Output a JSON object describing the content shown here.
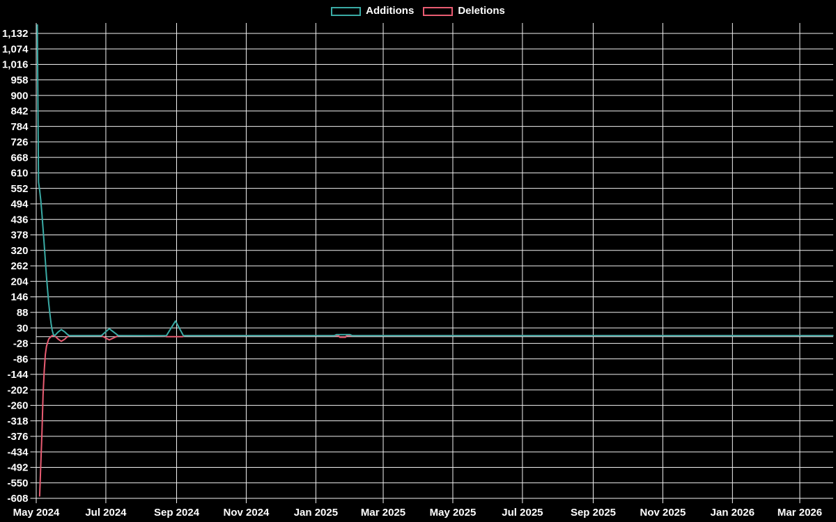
{
  "legend": {
    "items": [
      {
        "label": "Additions",
        "color": "#3aaba5"
      },
      {
        "label": "Deletions",
        "color": "#e95c72"
      }
    ]
  },
  "colors": {
    "background": "#000000",
    "grid": "#f2f2f2",
    "zero_axis": "#f2f2f2",
    "label_text": "#ffffff",
    "additions": "#3aaba5",
    "deletions": "#e95c72"
  },
  "chart_data": {
    "type": "line",
    "title": "",
    "legend_position": "top-center",
    "grid": true,
    "x_axis": {
      "unit": "days since 2024-05-01",
      "range_days": [
        0,
        698
      ],
      "ticks": [
        {
          "day": 0,
          "label": "May 2024"
        },
        {
          "day": 61,
          "label": "Jul 2024"
        },
        {
          "day": 123,
          "label": "Sep 2024"
        },
        {
          "day": 184,
          "label": "Nov 2024"
        },
        {
          "day": 245,
          "label": "Jan 2025"
        },
        {
          "day": 304,
          "label": "Mar 2025"
        },
        {
          "day": 365,
          "label": "May 2025"
        },
        {
          "day": 426,
          "label": "Jul 2025"
        },
        {
          "day": 488,
          "label": "Sep 2025"
        },
        {
          "day": 549,
          "label": "Nov 2025"
        },
        {
          "day": 610,
          "label": "Jan 2026"
        },
        {
          "day": 669,
          "label": "Mar 2026"
        }
      ]
    },
    "y_axis": {
      "min": -608,
      "max": 1132,
      "tick_step": 58,
      "tick_labels": [
        "1,132",
        "1,074",
        "1,016",
        "958",
        "900",
        "842",
        "784",
        "726",
        "668",
        "610",
        "552",
        "494",
        "436",
        "378",
        "320",
        "262",
        "204",
        "146",
        "88",
        "30",
        "-28",
        "-86",
        "-144",
        "-202",
        "-260",
        "-318",
        "-376",
        "-434",
        "-492",
        "-550",
        "-608"
      ]
    },
    "series": [
      {
        "name": "Additions",
        "color": "#3aaba5",
        "points": [
          [
            1,
            1163
          ],
          [
            2,
            575
          ],
          [
            3,
            545
          ],
          [
            4,
            505
          ],
          [
            5,
            455
          ],
          [
            6,
            400
          ],
          [
            7,
            340
          ],
          [
            8,
            280
          ],
          [
            9,
            222
          ],
          [
            10,
            168
          ],
          [
            11,
            120
          ],
          [
            12,
            80
          ],
          [
            13,
            46
          ],
          [
            14,
            20
          ],
          [
            15,
            5
          ],
          [
            16,
            0
          ],
          [
            17,
            4
          ],
          [
            19,
            13
          ],
          [
            22,
            23
          ],
          [
            25,
            14
          ],
          [
            27,
            6
          ],
          [
            29,
            0
          ],
          [
            57,
            0
          ],
          [
            64,
            26
          ],
          [
            72,
            0
          ],
          [
            114,
            0
          ],
          [
            122,
            55
          ],
          [
            129,
            0
          ],
          [
            261,
            0
          ],
          [
            263,
            4
          ],
          [
            275,
            4
          ],
          [
            277,
            0
          ],
          [
            698,
            0
          ]
        ]
      },
      {
        "name": "Deletions",
        "color": "#e95c72",
        "points": [
          [
            3,
            -600
          ],
          [
            5,
            -365
          ],
          [
            6,
            -222
          ],
          [
            7,
            -130
          ],
          [
            8,
            -70
          ],
          [
            9,
            -40
          ],
          [
            10,
            -25
          ],
          [
            11,
            -12
          ],
          [
            13,
            -3
          ],
          [
            14,
            0
          ],
          [
            16,
            0
          ],
          [
            17,
            -4
          ],
          [
            19,
            -12
          ],
          [
            22,
            -21
          ],
          [
            25,
            -13
          ],
          [
            27,
            -5
          ],
          [
            29,
            0
          ],
          [
            57,
            0
          ],
          [
            64,
            -16
          ],
          [
            72,
            0
          ],
          [
            113,
            -1
          ],
          [
            114,
            -4
          ],
          [
            128,
            -4
          ],
          [
            130,
            0
          ],
          [
            265,
            0
          ],
          [
            266,
            -6
          ],
          [
            271,
            -6
          ],
          [
            272,
            0
          ],
          [
            698,
            0
          ]
        ]
      }
    ]
  }
}
